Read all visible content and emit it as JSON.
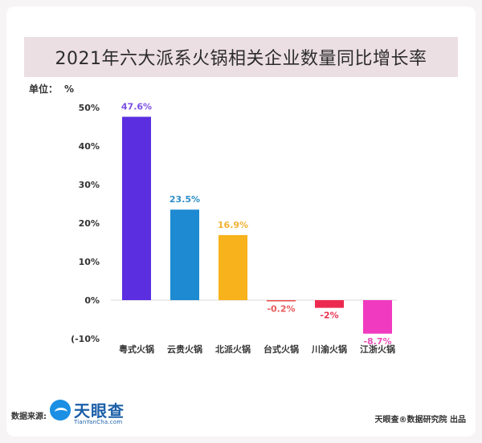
{
  "unit": {
    "label": "单位：",
    "symbol": "%"
  },
  "footer": {
    "source_label": "数据来源:",
    "logo_name": "天眼查",
    "logo_url": "TianYanCha.com",
    "credit": "天眼查®数据研究院 出品"
  },
  "chart_data": {
    "type": "bar",
    "title": "2021年六大派系火锅相关企业数量同比增长率",
    "categories": [
      "粤式火锅",
      "云贵火锅",
      "北派火锅",
      "台式火锅",
      "川渝火锅",
      "江浙火锅"
    ],
    "values": [
      47.6,
      23.5,
      16.9,
      -0.2,
      -2,
      -8.7
    ],
    "value_labels": [
      "47.6%",
      "23.5%",
      "16.9%",
      "-0.2%",
      "-2%",
      "-8.7%"
    ],
    "colors": [
      "#5b2ee0",
      "#1e8ad2",
      "#f7b21c",
      "#e84a4a",
      "#ec2a4f",
      "#f03ac0"
    ],
    "label_colors": [
      "#7b4fe3",
      "#2f8fc9",
      "#f2b233",
      "#e85a5a",
      "#e8334f",
      "#e84fb8"
    ],
    "yticks": [
      "50%",
      "40%",
      "30%",
      "20%",
      "10%",
      "0%",
      "(-10%"
    ],
    "ytick_values": [
      50,
      40,
      30,
      20,
      10,
      0,
      -10
    ],
    "ylim": [
      -10,
      50
    ],
    "grid": false
  }
}
